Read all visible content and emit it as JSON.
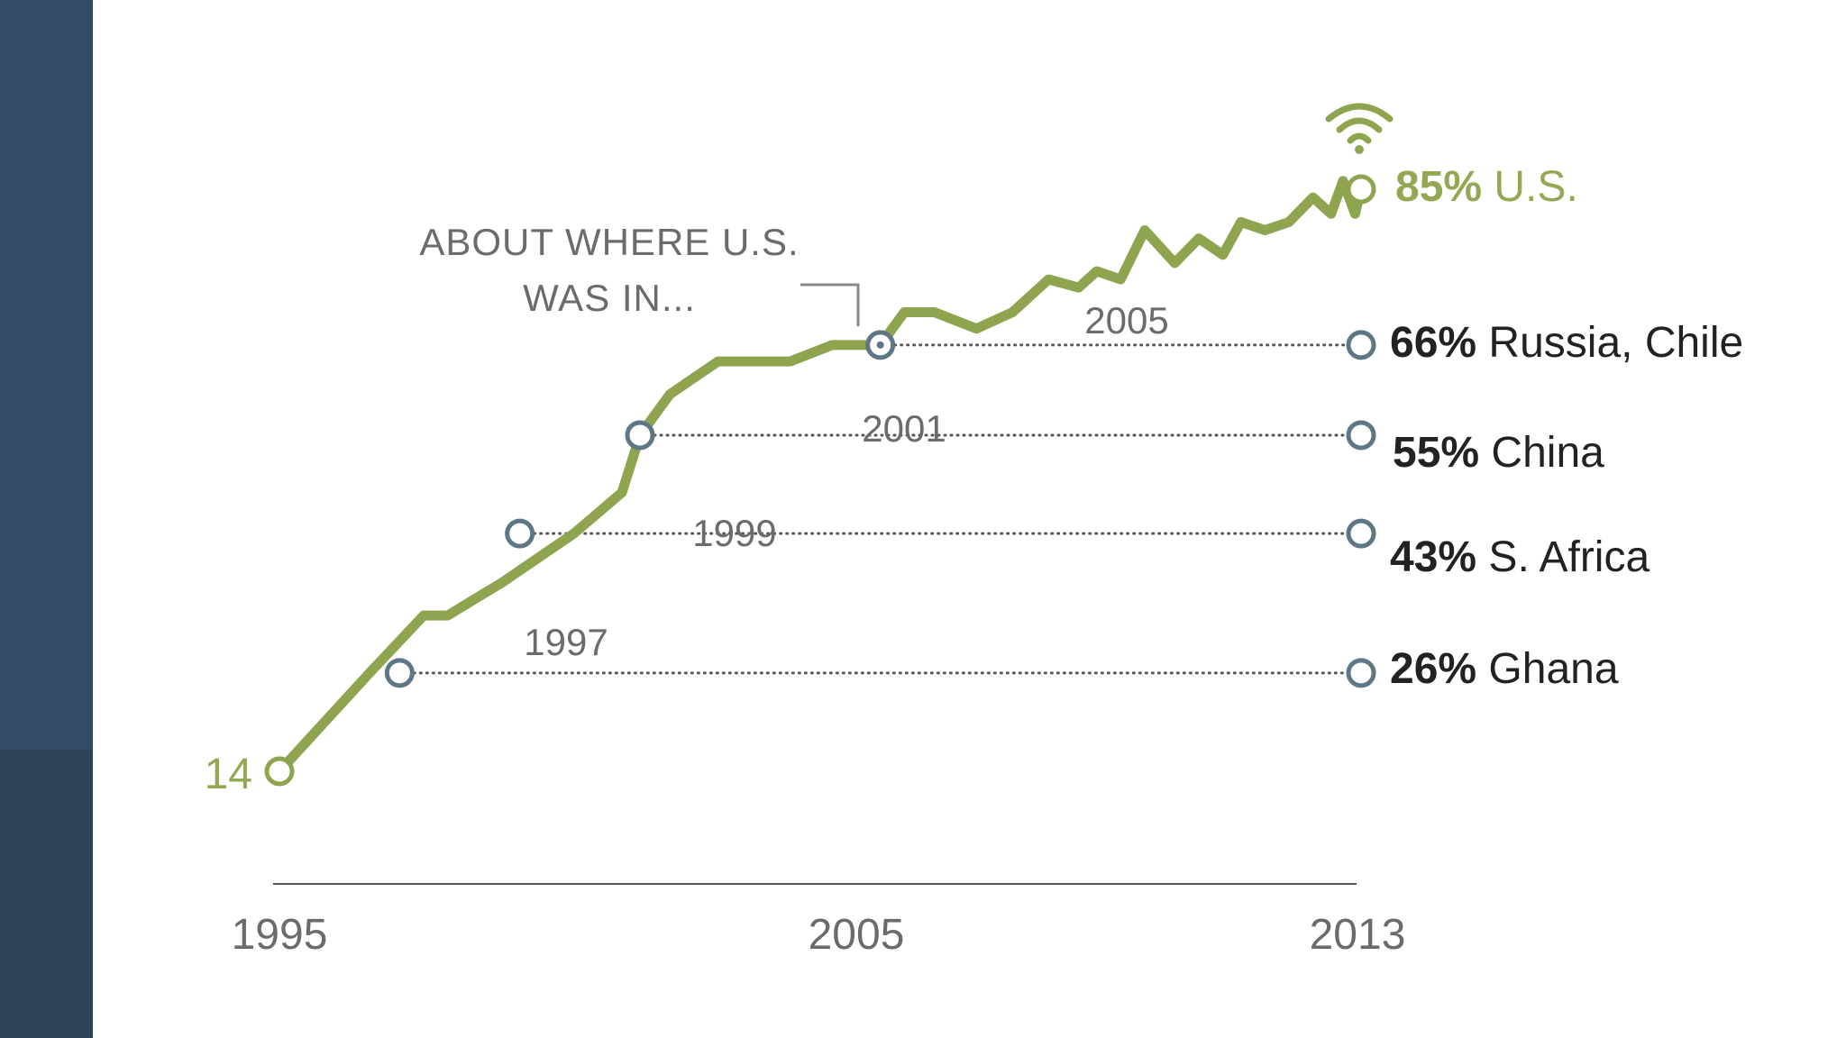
{
  "colors": {
    "line": "#8fa44f",
    "dotted": "#555555",
    "marker": "#5f7685",
    "axis": "#555555",
    "us_label": "#93a852",
    "text": "#222222",
    "muted": "#6b6b6b",
    "sidebar_top": "#344c66",
    "sidebar_bottom": "#2e4259"
  },
  "icons": {
    "us_marker": "wifi-icon"
  },
  "chart_data": {
    "type": "line",
    "title": "",
    "xlabel": "",
    "ylabel": "",
    "xlim": [
      1995,
      2013
    ],
    "ylim": [
      14,
      85
    ],
    "x_ticks": [
      "1995",
      "2005",
      "2013"
    ],
    "series": [
      {
        "name": "U.S.",
        "x": [
          1995,
          1996.5,
          1997.4,
          1997.8,
          1998.7,
          1999.9,
          2000.7,
          2001.0,
          2001.5,
          2002.3,
          2003.5,
          2004.2,
          2004.7,
          2005.0,
          2005.4,
          2005.9,
          2006.6,
          2007.2,
          2007.8,
          2008.3,
          2008.6,
          2009.0,
          2009.4,
          2009.9,
          2010.3,
          2010.7,
          2011.0,
          2011.4,
          2011.8,
          2012.2,
          2012.5,
          2012.7,
          2012.9,
          2013.0
        ],
        "y": [
          14,
          26,
          33,
          33,
          37,
          43,
          48,
          55,
          60,
          64,
          64,
          66,
          66,
          66,
          70,
          70,
          68,
          70,
          74,
          73,
          75,
          74,
          80,
          76,
          79,
          77,
          81,
          80,
          81,
          84,
          82,
          86,
          82,
          85
        ]
      }
    ],
    "start_label": "14",
    "end_label": {
      "pct": "85%",
      "name": "U.S."
    },
    "annotation": {
      "line1": "ABOUT WHERE U.S.",
      "line2": "WAS IN..."
    },
    "comparisons": [
      {
        "pct": "66%",
        "name": "Russia, Chile",
        "value": 66,
        "us_year": 2005,
        "year_label": "2005"
      },
      {
        "pct": "55%",
        "name": "China",
        "value": 55,
        "us_year": 2001,
        "year_label": "2001"
      },
      {
        "pct": "43%",
        "name": "S. Africa",
        "value": 43,
        "us_year": 1999,
        "year_label": "1999"
      },
      {
        "pct": "26%",
        "name": "Ghana",
        "value": 26,
        "us_year": 1997,
        "year_label": "1997"
      }
    ]
  }
}
